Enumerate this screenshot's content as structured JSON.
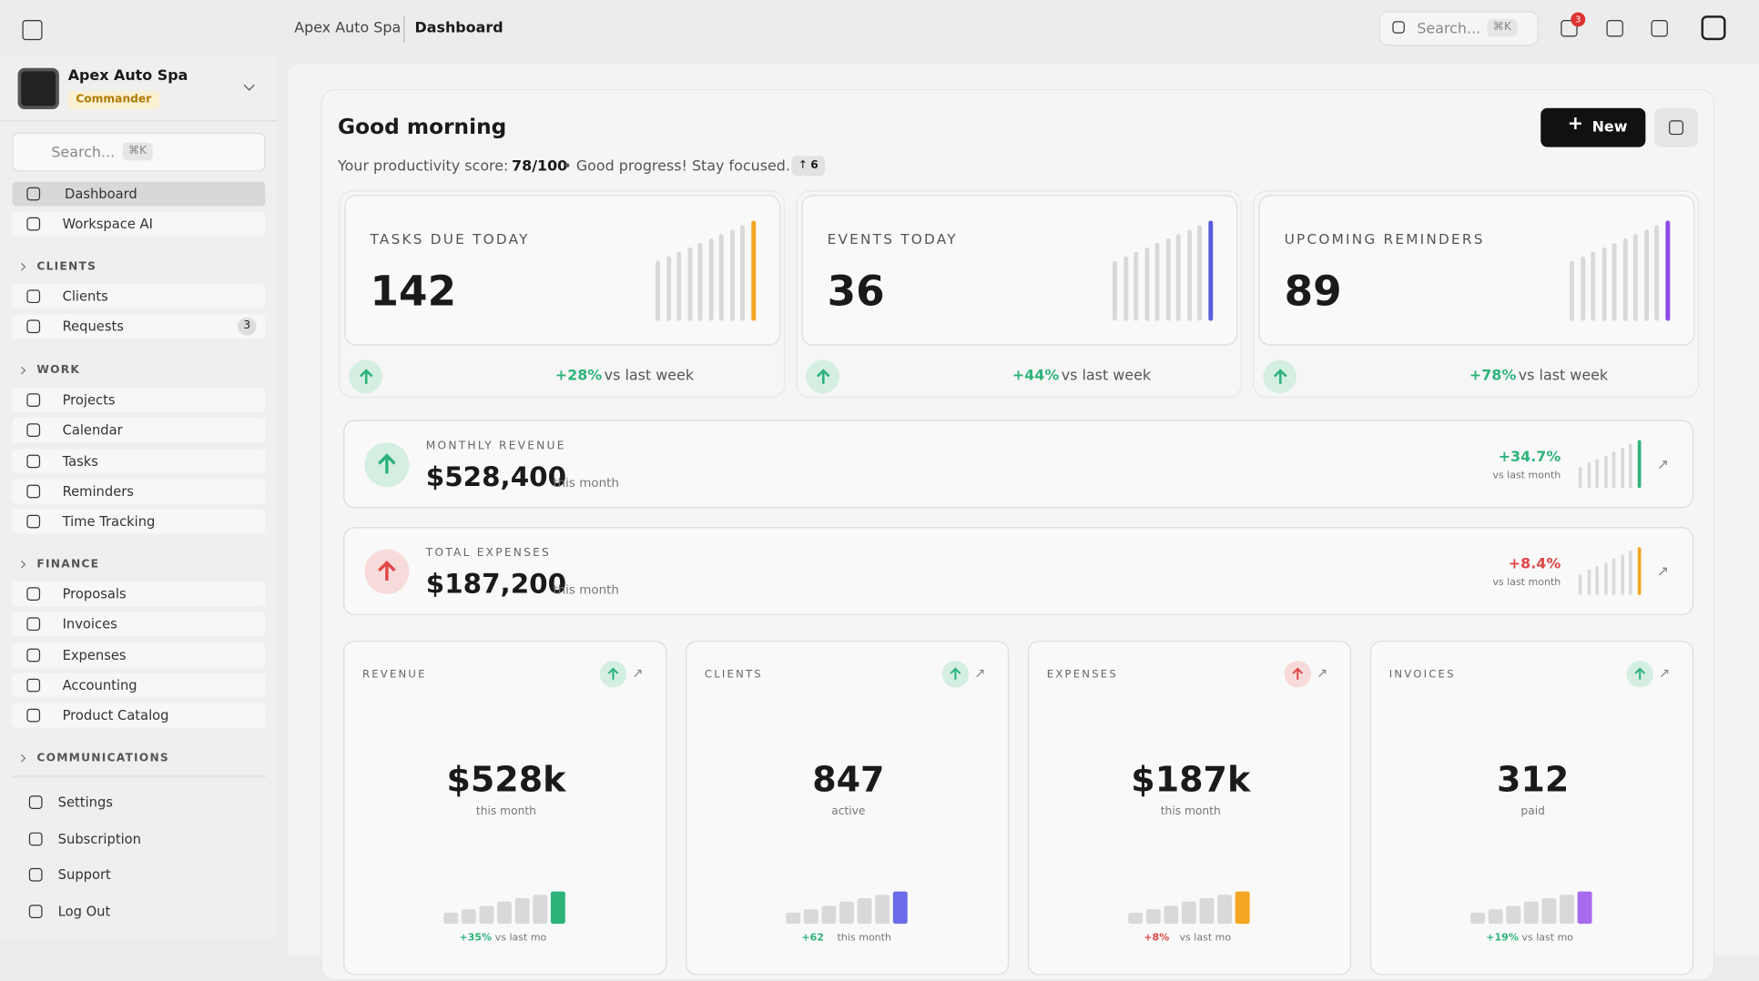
{
  "header": {
    "breadcrumb": [
      "Apex Auto Spa",
      "Dashboard"
    ],
    "search_placeholder": "Search...",
    "search_shortcut": "⌘K",
    "notification_count": "3"
  },
  "sidebar": {
    "workspace_name": "Apex Auto Spa",
    "workspace_badge": "Commander",
    "search_placeholder": "Search...",
    "search_shortcut": "⌘K",
    "top_items": [
      {
        "label": "Dashboard"
      },
      {
        "label": "Workspace AI"
      }
    ],
    "sections": [
      {
        "title": "CLIENTS",
        "items": [
          {
            "label": "Clients"
          },
          {
            "label": "Requests",
            "badge": "3"
          }
        ]
      },
      {
        "title": "WORK",
        "items": [
          {
            "label": "Projects"
          },
          {
            "label": "Calendar"
          },
          {
            "label": "Tasks"
          },
          {
            "label": "Reminders"
          },
          {
            "label": "Time Tracking"
          }
        ]
      },
      {
        "title": "FINANCE",
        "items": [
          {
            "label": "Proposals"
          },
          {
            "label": "Invoices"
          },
          {
            "label": "Expenses"
          },
          {
            "label": "Accounting"
          },
          {
            "label": "Product Catalog"
          }
        ]
      },
      {
        "title": "COMMUNICATIONS",
        "items": []
      }
    ],
    "footer_items": [
      {
        "label": "Settings"
      },
      {
        "label": "Subscription"
      },
      {
        "label": "Support"
      },
      {
        "label": "Log Out"
      }
    ]
  },
  "main": {
    "greeting": "Good morning",
    "new_button": "New",
    "productivity": {
      "prefix": "Your productivity score:",
      "score": "78/100",
      "message": "• Good progress! Stay focused.",
      "badge": "6"
    },
    "stat_cards": [
      {
        "label": "TASKS DUE TODAY",
        "value": "142",
        "change": "+28%",
        "suffix": "vs last week"
      },
      {
        "label": "EVENTS TODAY",
        "value": "36",
        "change": "+44%",
        "suffix": "vs last week"
      },
      {
        "label": "UPCOMING REMINDERS",
        "value": "89",
        "change": "+78%",
        "suffix": "vs last week"
      }
    ],
    "wide_cards": [
      {
        "label": "MONTHLY REVENUE",
        "value": "$528,400",
        "suffix": "this month",
        "change": "+34.7%",
        "change_suffix": "vs last month"
      },
      {
        "label": "TOTAL EXPENSES",
        "value": "$187,200",
        "suffix": "this month",
        "change": "+8.4%",
        "change_suffix": "vs last month"
      }
    ],
    "small_cards": [
      {
        "label": "REVENUE",
        "value": "$528k",
        "sub": "this month",
        "change": "+35%",
        "change_suffix": "vs last mo"
      },
      {
        "label": "CLIENTS",
        "value": "847",
        "sub": "active",
        "change": "+62",
        "change_suffix": "this month"
      },
      {
        "label": "EXPENSES",
        "value": "$187k",
        "sub": "this month",
        "change": "+8%",
        "change_suffix": "vs last mo"
      },
      {
        "label": "INVOICES",
        "value": "312",
        "sub": "paid",
        "change": "+19%",
        "change_suffix": "vs last mo"
      }
    ]
  }
}
